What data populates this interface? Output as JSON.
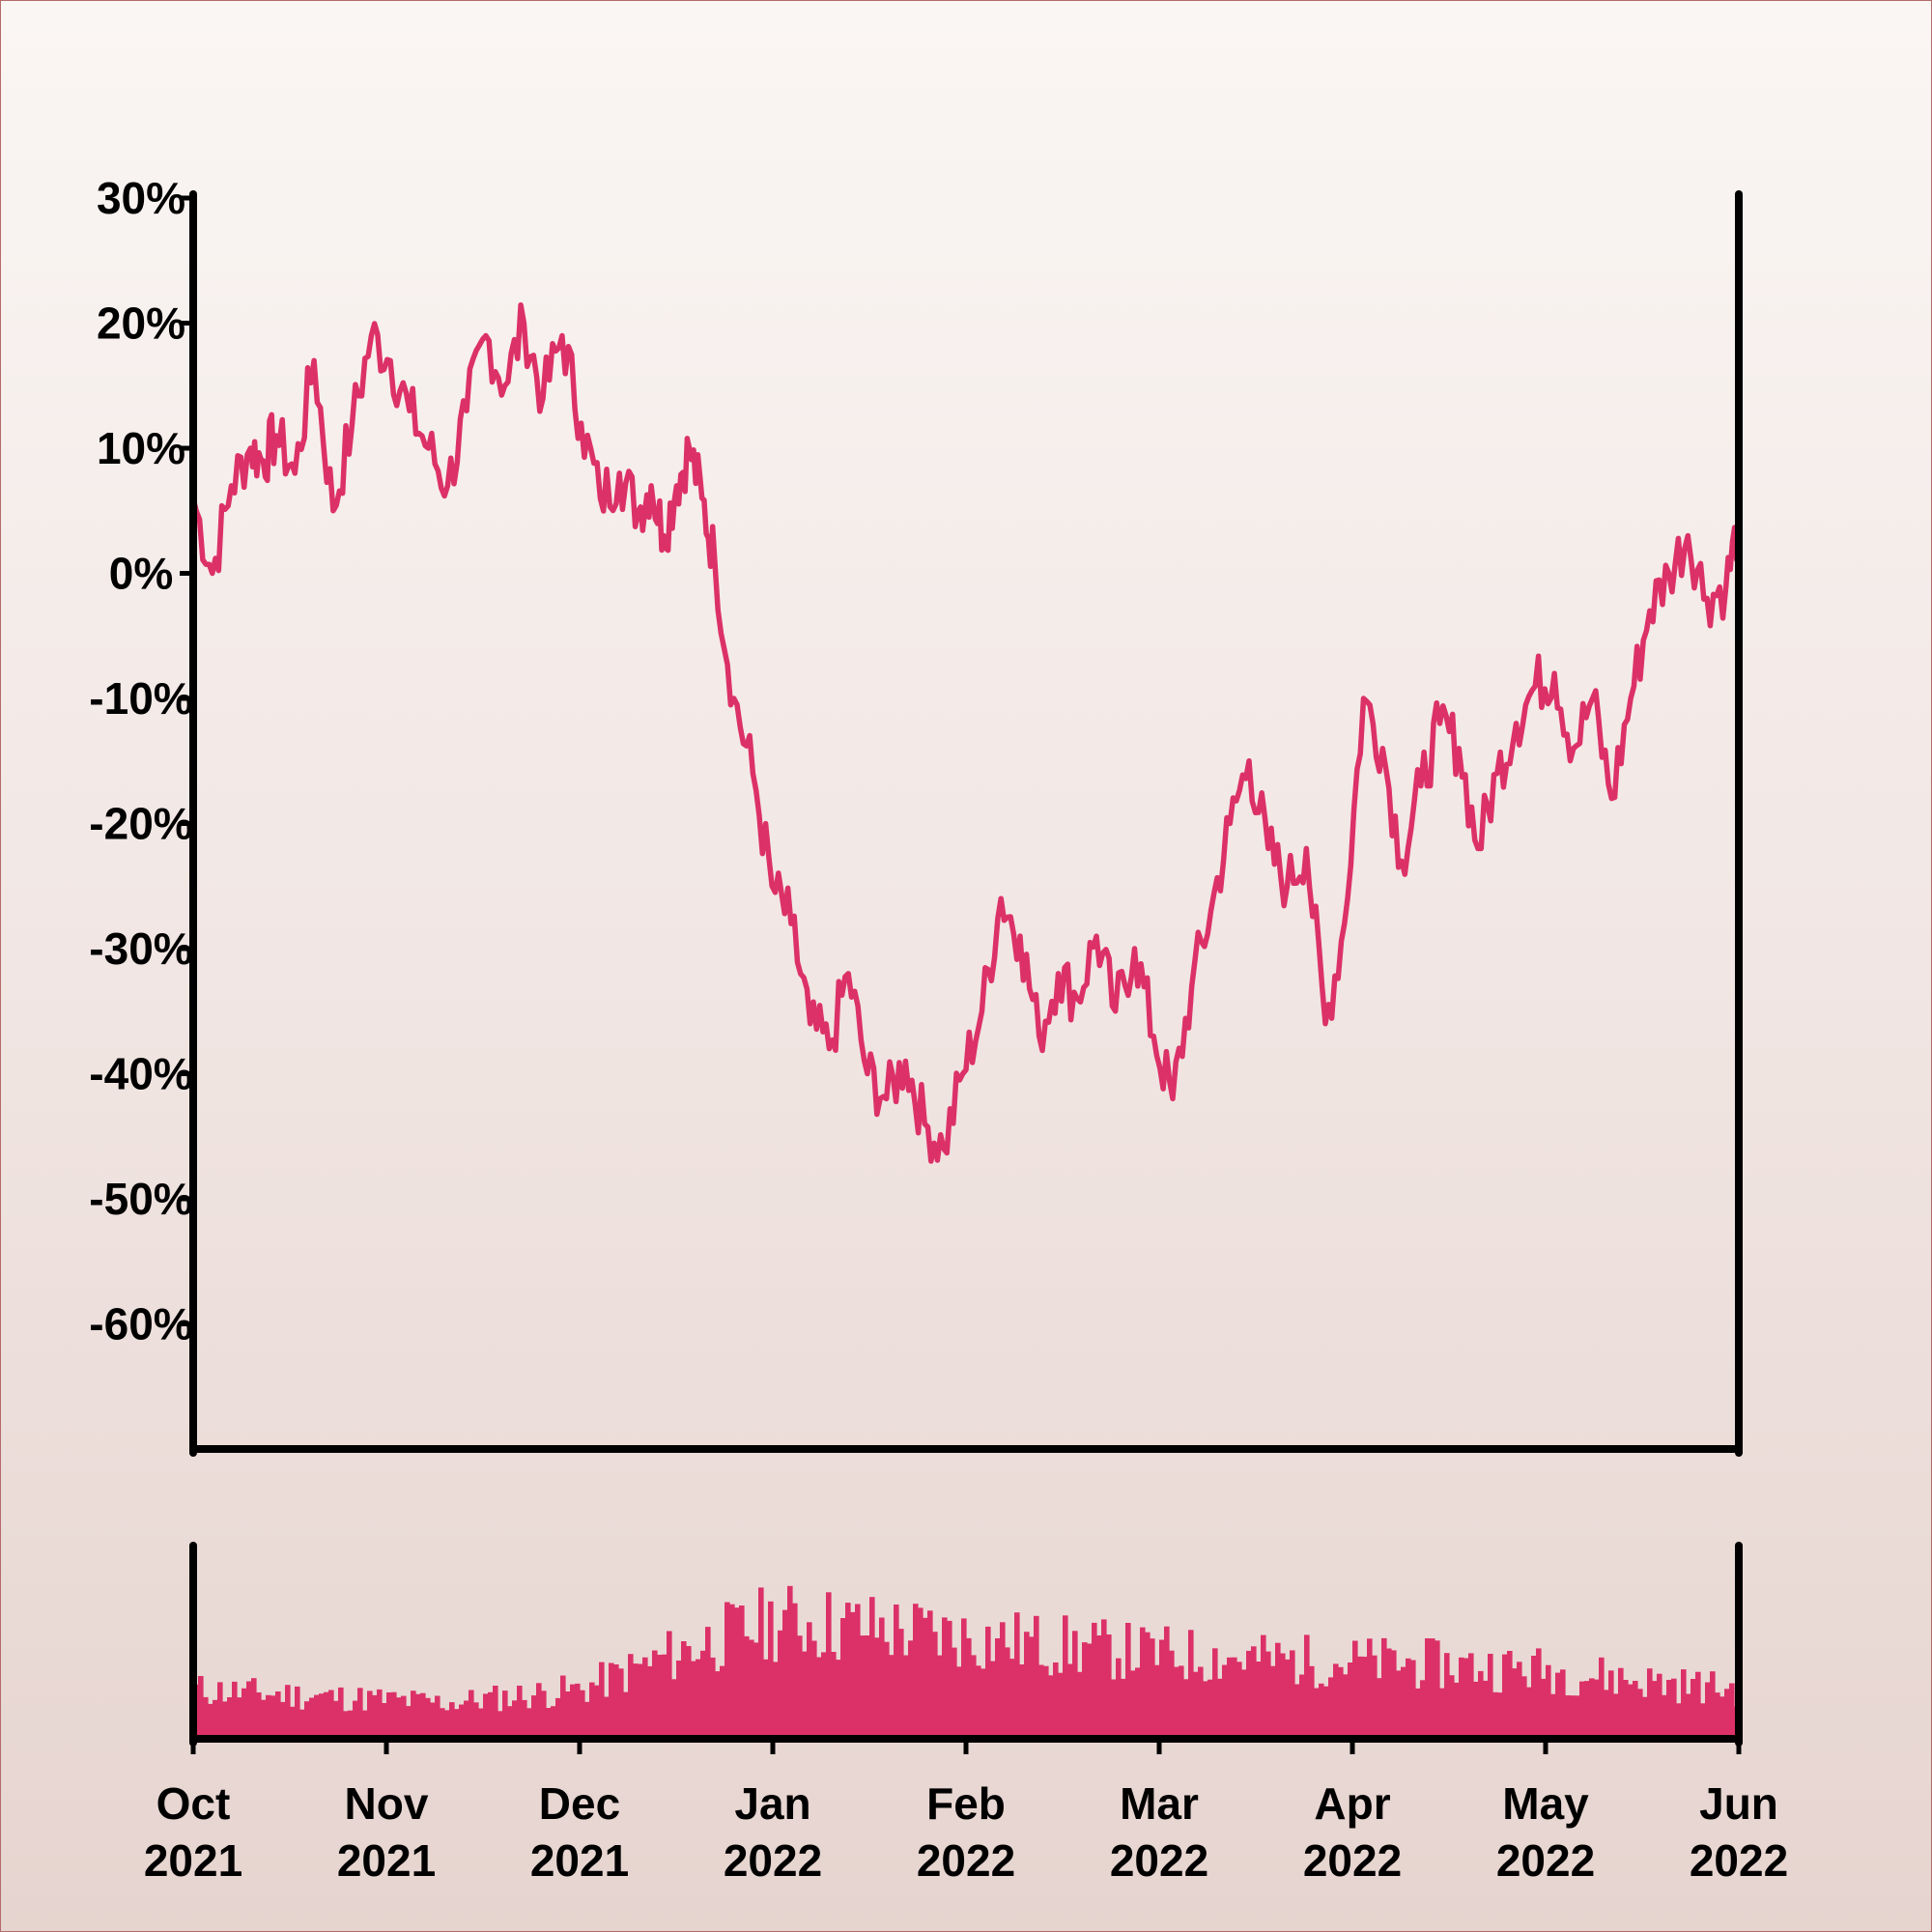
{
  "colors": {
    "line": "#dc3168",
    "bars": "#dc3168",
    "axis": "#000000"
  },
  "chart_data": [
    {
      "type": "line",
      "title": "",
      "xlabel": "",
      "ylabel": "",
      "y_format": "percent",
      "ylim": [
        -70,
        30
      ],
      "y_ticks": [
        30,
        20,
        10,
        0,
        -10,
        -20,
        -30,
        -40,
        -50,
        -60
      ],
      "y_tick_labels": [
        "30%",
        "20%",
        "10%",
        "0%",
        "-10%",
        "-20%",
        "-30%",
        "-40%",
        "-50%",
        "-60%"
      ],
      "x_range": [
        "2021-10-01",
        "2022-06-01"
      ],
      "grid": false,
      "legend": "none",
      "series": [
        {
          "x": [
            "2021-10-01",
            "2021-10-04",
            "2021-10-07",
            "2021-10-10",
            "2021-10-12",
            "2021-10-14",
            "2021-10-17",
            "2021-10-20",
            "2021-10-23",
            "2021-10-26",
            "2021-10-29",
            "2021-11-01",
            "2021-11-04",
            "2021-11-07",
            "2021-11-10",
            "2021-11-13",
            "2021-11-16",
            "2021-11-19",
            "2021-11-22",
            "2021-11-25",
            "2021-11-28",
            "2021-12-01",
            "2021-12-04",
            "2021-12-07",
            "2021-12-10",
            "2021-12-12",
            "2021-12-14",
            "2021-12-16",
            "2021-12-18",
            "2021-12-20",
            "2021-12-22",
            "2021-12-25",
            "2021-12-28",
            "2021-12-31",
            "2022-01-03",
            "2022-01-06",
            "2022-01-09",
            "2022-01-12",
            "2022-01-15",
            "2022-01-18",
            "2022-01-21",
            "2022-01-24",
            "2022-01-27",
            "2022-01-30",
            "2022-02-02",
            "2022-02-05",
            "2022-02-08",
            "2022-02-11",
            "2022-02-14",
            "2022-02-17",
            "2022-02-20",
            "2022-02-23",
            "2022-02-26",
            "2022-03-01",
            "2022-03-04",
            "2022-03-07",
            "2022-03-10",
            "2022-03-13",
            "2022-03-16",
            "2022-03-19",
            "2022-03-22",
            "2022-03-25",
            "2022-03-28",
            "2022-03-31",
            "2022-04-03",
            "2022-04-06",
            "2022-04-09",
            "2022-04-12",
            "2022-04-15",
            "2022-04-18",
            "2022-04-21",
            "2022-04-24",
            "2022-04-27",
            "2022-04-30",
            "2022-05-03",
            "2022-05-06",
            "2022-05-09",
            "2022-05-12",
            "2022-05-15",
            "2022-05-18",
            "2022-05-21",
            "2022-05-24",
            "2022-05-27",
            "2022-05-30",
            "2022-06-01"
          ],
          "y": [
            6,
            0,
            7,
            10,
            9,
            11,
            8,
            17,
            5,
            12,
            19,
            17,
            13,
            10,
            7,
            13,
            19,
            15,
            20,
            14,
            19,
            12,
            6,
            8,
            5,
            7,
            3,
            7,
            10,
            6,
            1,
            -10,
            -16,
            -25,
            -28,
            -36,
            -38,
            -32,
            -40,
            -42,
            -39,
            -44,
            -46,
            -40,
            -35,
            -26,
            -29,
            -37,
            -32,
            -34,
            -29,
            -35,
            -30,
            -37,
            -42,
            -33,
            -27,
            -20,
            -15,
            -22,
            -25,
            -22,
            -36,
            -28,
            -10,
            -14,
            -23,
            -17,
            -12,
            -14,
            -22,
            -16,
            -12,
            -9,
            -8,
            -14,
            -10,
            -18,
            -10,
            -3,
            0,
            3,
            -2,
            -1,
            4
          ]
        }
      ]
    },
    {
      "type": "bar",
      "title": "",
      "y_format": "none",
      "description_key": "volume",
      "x_range": [
        "2021-10-01",
        "2022-06-01"
      ],
      "x_tick_labels": [
        {
          "month": "Oct",
          "year": "2021"
        },
        {
          "month": "Nov",
          "year": "2021"
        },
        {
          "month": "Dec",
          "year": "2021"
        },
        {
          "month": "Jan",
          "year": "2022"
        },
        {
          "month": "Feb",
          "year": "2022"
        },
        {
          "month": "Mar",
          "year": "2022"
        },
        {
          "month": "Apr",
          "year": "2022"
        },
        {
          "month": "May",
          "year": "2022"
        },
        {
          "month": "Jun",
          "year": "2022"
        }
      ],
      "volume_envelope": {
        "dates": [
          "2021-10-01",
          "2021-10-20",
          "2021-11-10",
          "2021-12-01",
          "2021-12-20",
          "2022-01-01",
          "2022-01-20",
          "2022-02-10",
          "2022-03-01",
          "2022-03-20",
          "2022-04-10",
          "2022-05-01",
          "2022-05-20",
          "2022-06-01"
        ],
        "levels": [
          0.3,
          0.26,
          0.22,
          0.3,
          0.58,
          0.72,
          0.66,
          0.58,
          0.52,
          0.48,
          0.46,
          0.42,
          0.34,
          0.3
        ]
      },
      "ylim": [
        0,
        1
      ],
      "grid": false
    }
  ]
}
